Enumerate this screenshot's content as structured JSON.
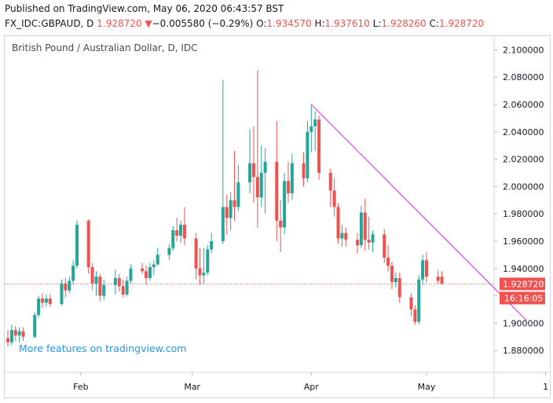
{
  "header": {
    "published": "Published on TradingView.com, May 06, 2020 06:43:57 BST",
    "symbol": "FX_IDC:GBPAUD, D",
    "price": "1.928720",
    "change_arrow": "▼",
    "change": "−0.005580 (−0.29%)",
    "o_label": "O:",
    "o_value": "1.934570",
    "h_label": "H:",
    "h_value": "1.937610",
    "l_label": "L:",
    "l_value": "1.928260",
    "c_label": "C:",
    "c_value": "1.928720"
  },
  "colors": {
    "up": "#26a69a",
    "down": "#ef5350",
    "trendline": "#e040fb",
    "promo": "#2196f3",
    "last_price": "#ef5350",
    "countdown_bg": "#ef5350"
  },
  "chart_data": {
    "type": "candlestick",
    "title": "British Pound / Australian Dollar, D, IDC",
    "ylim": [
      1.864,
      2.11
    ],
    "yticks": [
      "2.100000",
      "2.080000",
      "2.060000",
      "2.040000",
      "2.020000",
      "2.000000",
      "1.980000",
      "1.960000",
      "1.940000",
      "1.920000",
      "1.900000",
      "1.880000"
    ],
    "xticks": [
      "Feb",
      "Mar",
      "Apr",
      "May",
      "1"
    ],
    "grid": false,
    "last_price": 1.92872,
    "last_price_label": "1.928720",
    "countdown": "16:16:05",
    "watermark": "More features on tradingview.com",
    "trendline": {
      "from": {
        "date": "2020-04-01",
        "price": 2.06
      },
      "to": {
        "date": "2020-05-27",
        "price": 1.902
      }
    },
    "candles": [
      {
        "d": "2020-01-13",
        "o": 1.889,
        "h": 1.895,
        "l": 1.883,
        "c": 1.886
      },
      {
        "d": "2020-01-14",
        "o": 1.886,
        "h": 1.899,
        "l": 1.884,
        "c": 1.895
      },
      {
        "d": "2020-01-15",
        "o": 1.895,
        "h": 1.898,
        "l": 1.887,
        "c": 1.891
      },
      {
        "d": "2020-01-16",
        "o": 1.891,
        "h": 1.897,
        "l": 1.886,
        "c": 1.894
      },
      {
        "d": "2020-01-17",
        "o": 1.894,
        "h": 1.897,
        "l": 1.887,
        "c": 1.89
      },
      {
        "d": "2020-01-20",
        "o": 1.89,
        "h": 1.908,
        "l": 1.889,
        "c": 1.906
      },
      {
        "d": "2020-01-21",
        "o": 1.906,
        "h": 1.92,
        "l": 1.904,
        "c": 1.918
      },
      {
        "d": "2020-01-22",
        "o": 1.918,
        "h": 1.922,
        "l": 1.911,
        "c": 1.915
      },
      {
        "d": "2020-01-23",
        "o": 1.915,
        "h": 1.921,
        "l": 1.912,
        "c": 1.918
      },
      {
        "d": "2020-01-24",
        "o": 1.918,
        "h": 1.921,
        "l": 1.912,
        "c": 1.914
      },
      {
        "d": "2020-01-27",
        "o": 1.914,
        "h": 1.932,
        "l": 1.913,
        "c": 1.929
      },
      {
        "d": "2020-01-28",
        "o": 1.929,
        "h": 1.933,
        "l": 1.919,
        "c": 1.924
      },
      {
        "d": "2020-01-29",
        "o": 1.924,
        "h": 1.934,
        "l": 1.922,
        "c": 1.931
      },
      {
        "d": "2020-01-30",
        "o": 1.931,
        "h": 1.946,
        "l": 1.928,
        "c": 1.942
      },
      {
        "d": "2020-01-31",
        "o": 1.942,
        "h": 1.975,
        "l": 1.94,
        "c": 1.972
      },
      {
        "d": "2020-02-03",
        "o": 1.975,
        "h": 1.976,
        "l": 1.936,
        "c": 1.941
      },
      {
        "d": "2020-02-04",
        "o": 1.941,
        "h": 1.944,
        "l": 1.924,
        "c": 1.929
      },
      {
        "d": "2020-02-05",
        "o": 1.929,
        "h": 1.938,
        "l": 1.92,
        "c": 1.934
      },
      {
        "d": "2020-02-06",
        "o": 1.934,
        "h": 1.936,
        "l": 1.916,
        "c": 1.92
      },
      {
        "d": "2020-02-07",
        "o": 1.92,
        "h": 1.932,
        "l": 1.917,
        "c": 1.928
      },
      {
        "d": "2020-02-10",
        "o": 1.928,
        "h": 1.939,
        "l": 1.921,
        "c": 1.933
      },
      {
        "d": "2020-02-11",
        "o": 1.933,
        "h": 1.936,
        "l": 1.923,
        "c": 1.927
      },
      {
        "d": "2020-02-12",
        "o": 1.927,
        "h": 1.932,
        "l": 1.919,
        "c": 1.921
      },
      {
        "d": "2020-02-13",
        "o": 1.921,
        "h": 1.934,
        "l": 1.92,
        "c": 1.931
      },
      {
        "d": "2020-02-14",
        "o": 1.931,
        "h": 1.943,
        "l": 1.929,
        "c": 1.94
      },
      {
        "d": "2020-02-17",
        "o": 1.94,
        "h": 1.944,
        "l": 1.936,
        "c": 1.938
      },
      {
        "d": "2020-02-18",
        "o": 1.938,
        "h": 1.942,
        "l": 1.928,
        "c": 1.933
      },
      {
        "d": "2020-02-19",
        "o": 1.933,
        "h": 1.944,
        "l": 1.931,
        "c": 1.941
      },
      {
        "d": "2020-02-20",
        "o": 1.941,
        "h": 1.946,
        "l": 1.935,
        "c": 1.943
      },
      {
        "d": "2020-02-21",
        "o": 1.943,
        "h": 1.955,
        "l": 1.942,
        "c": 1.95
      },
      {
        "d": "2020-02-24",
        "o": 1.95,
        "h": 1.958,
        "l": 1.946,
        "c": 1.955
      },
      {
        "d": "2020-02-25",
        "o": 1.955,
        "h": 1.971,
        "l": 1.953,
        "c": 1.968
      },
      {
        "d": "2020-02-26",
        "o": 1.968,
        "h": 1.977,
        "l": 1.96,
        "c": 1.964
      },
      {
        "d": "2020-02-27",
        "o": 1.964,
        "h": 1.975,
        "l": 1.959,
        "c": 1.972
      },
      {
        "d": "2020-02-28",
        "o": 1.972,
        "h": 1.985,
        "l": 1.957,
        "c": 1.962
      },
      {
        "d": "2020-03-02",
        "o": 1.962,
        "h": 1.966,
        "l": 1.932,
        "c": 1.94
      },
      {
        "d": "2020-03-03",
        "o": 1.94,
        "h": 1.955,
        "l": 1.928,
        "c": 1.935
      },
      {
        "d": "2020-03-04",
        "o": 1.935,
        "h": 1.955,
        "l": 1.929,
        "c": 1.937
      },
      {
        "d": "2020-03-05",
        "o": 1.937,
        "h": 1.957,
        "l": 1.935,
        "c": 1.954
      },
      {
        "d": "2020-03-06",
        "o": 1.954,
        "h": 1.966,
        "l": 1.951,
        "c": 1.96
      },
      {
        "d": "2020-03-09",
        "o": 1.96,
        "h": 2.078,
        "l": 1.958,
        "c": 1.985
      },
      {
        "d": "2020-03-10",
        "o": 1.985,
        "h": 1.994,
        "l": 1.965,
        "c": 1.977
      },
      {
        "d": "2020-03-11",
        "o": 1.977,
        "h": 1.996,
        "l": 1.968,
        "c": 1.99
      },
      {
        "d": "2020-03-12",
        "o": 1.99,
        "h": 2.026,
        "l": 1.975,
        "c": 1.985
      },
      {
        "d": "2020-03-13",
        "o": 1.985,
        "h": 2.016,
        "l": 1.982,
        "c": 2.003
      },
      {
        "d": "2020-03-16",
        "o": 2.003,
        "h": 2.042,
        "l": 1.995,
        "c": 2.017
      },
      {
        "d": "2020-03-17",
        "o": 2.017,
        "h": 2.044,
        "l": 1.988,
        "c": 2.007
      },
      {
        "d": "2020-03-18",
        "o": 2.007,
        "h": 2.085,
        "l": 1.97,
        "c": 1.992
      },
      {
        "d": "2020-03-19",
        "o": 1.992,
        "h": 2.03,
        "l": 1.985,
        "c": 2.01
      },
      {
        "d": "2020-03-20",
        "o": 2.01,
        "h": 2.028,
        "l": 1.98,
        "c": 2.018
      },
      {
        "d": "2020-03-23",
        "o": 2.018,
        "h": 2.048,
        "l": 1.96,
        "c": 1.975
      },
      {
        "d": "2020-03-24",
        "o": 1.975,
        "h": 1.99,
        "l": 1.952,
        "c": 1.97
      },
      {
        "d": "2020-03-25",
        "o": 1.97,
        "h": 2.01,
        "l": 1.965,
        "c": 2.004
      },
      {
        "d": "2020-03-26",
        "o": 2.004,
        "h": 2.018,
        "l": 1.988,
        "c": 1.995
      },
      {
        "d": "2020-03-27",
        "o": 1.995,
        "h": 2.024,
        "l": 1.99,
        "c": 2.017
      },
      {
        "d": "2020-03-30",
        "o": 2.017,
        "h": 2.025,
        "l": 2.0,
        "c": 2.006
      },
      {
        "d": "2020-03-31",
        "o": 2.006,
        "h": 2.048,
        "l": 2.003,
        "c": 2.04
      },
      {
        "d": "2020-04-01",
        "o": 2.04,
        "h": 2.06,
        "l": 2.025,
        "c": 2.044
      },
      {
        "d": "2020-04-02",
        "o": 2.044,
        "h": 2.055,
        "l": 2.026,
        "c": 2.049
      },
      {
        "d": "2020-04-03",
        "o": 2.049,
        "h": 2.052,
        "l": 2.005,
        "c": 2.01
      },
      {
        "d": "2020-04-06",
        "o": 2.01,
        "h": 2.013,
        "l": 1.985,
        "c": 1.997
      },
      {
        "d": "2020-04-07",
        "o": 1.997,
        "h": 2.006,
        "l": 1.978,
        "c": 1.985
      },
      {
        "d": "2020-04-08",
        "o": 1.985,
        "h": 1.988,
        "l": 1.958,
        "c": 1.962
      },
      {
        "d": "2020-04-09",
        "o": 1.962,
        "h": 1.972,
        "l": 1.956,
        "c": 1.966
      },
      {
        "d": "2020-04-10",
        "o": 1.966,
        "h": 1.97,
        "l": 1.956,
        "c": 1.961
      },
      {
        "d": "2020-04-13",
        "o": 1.961,
        "h": 1.966,
        "l": 1.951,
        "c": 1.957
      },
      {
        "d": "2020-04-14",
        "o": 1.957,
        "h": 1.986,
        "l": 1.955,
        "c": 1.981
      },
      {
        "d": "2020-04-15",
        "o": 1.981,
        "h": 1.991,
        "l": 1.953,
        "c": 1.961
      },
      {
        "d": "2020-04-16",
        "o": 1.961,
        "h": 1.978,
        "l": 1.954,
        "c": 1.959
      },
      {
        "d": "2020-04-17",
        "o": 1.959,
        "h": 1.968,
        "l": 1.952,
        "c": 1.965
      },
      {
        "d": "2020-04-20",
        "o": 1.965,
        "h": 1.969,
        "l": 1.944,
        "c": 1.948
      },
      {
        "d": "2020-04-21",
        "o": 1.948,
        "h": 1.957,
        "l": 1.938,
        "c": 1.942
      },
      {
        "d": "2020-04-22",
        "o": 1.942,
        "h": 1.945,
        "l": 1.925,
        "c": 1.93
      },
      {
        "d": "2020-04-23",
        "o": 1.93,
        "h": 1.937,
        "l": 1.926,
        "c": 1.933
      },
      {
        "d": "2020-04-24",
        "o": 1.933,
        "h": 1.937,
        "l": 1.915,
        "c": 1.919
      },
      {
        "d": "2020-04-27",
        "o": 1.919,
        "h": 1.922,
        "l": 1.905,
        "c": 1.91
      },
      {
        "d": "2020-04-28",
        "o": 1.91,
        "h": 1.913,
        "l": 1.899,
        "c": 1.901
      },
      {
        "d": "2020-04-29",
        "o": 1.901,
        "h": 1.935,
        "l": 1.899,
        "c": 1.932
      },
      {
        "d": "2020-04-30",
        "o": 1.932,
        "h": 1.95,
        "l": 1.928,
        "c": 1.946
      },
      {
        "d": "2020-05-01",
        "o": 1.946,
        "h": 1.952,
        "l": 1.93,
        "c": 1.934
      },
      {
        "d": "2020-05-04",
        "o": 1.934,
        "h": 1.939,
        "l": 1.929,
        "c": 1.931
      },
      {
        "d": "2020-05-05",
        "o": 1.934,
        "h": 1.938,
        "l": 1.928,
        "c": 1.929
      }
    ]
  }
}
